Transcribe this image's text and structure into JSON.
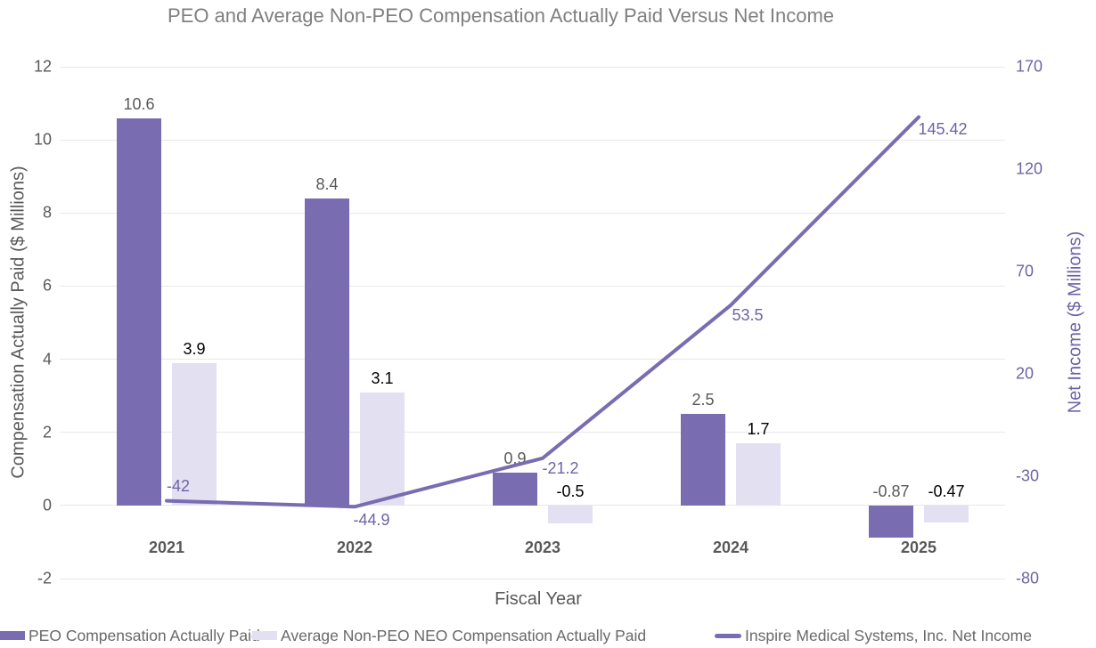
{
  "chart_data": {
    "type": "combo-bar-line",
    "title": "PEO and Average Non-PEO Compensation Actually Paid Versus Net Income",
    "xlabel": "Fiscal Year",
    "ylabel_left": "Compensation Actually Paid ($ Millions)",
    "ylabel_right": "Net Income ($ Millions)",
    "categories": [
      "2021",
      "2022",
      "2023",
      "2024",
      "2025"
    ],
    "left_axis": {
      "ticks": [
        12,
        10,
        8,
        6,
        4,
        2,
        0,
        -2
      ],
      "ylim": [
        -2,
        12
      ]
    },
    "right_axis": {
      "ticks": [
        170,
        120,
        70,
        20,
        -30,
        -80
      ],
      "ylim": [
        -80,
        170
      ]
    },
    "grid": "horizontal",
    "legend_position": "bottom",
    "series": [
      {
        "name": "PEO Compensation Actually Paid",
        "type": "bar",
        "axis": "left",
        "color": "#7A6CB0",
        "label_color": "#595959",
        "values": [
          10.6,
          8.4,
          0.9,
          2.5,
          -0.87
        ],
        "labels": [
          "10.6",
          "8.4",
          "0.9",
          "2.5",
          "-0.87"
        ]
      },
      {
        "name": "Average Non-PEO NEO Compensation Actually Paid",
        "type": "bar",
        "axis": "left",
        "color": "#E3E0F1",
        "label_color": "#000000",
        "values": [
          3.9,
          3.1,
          -0.5,
          1.7,
          -0.47
        ],
        "labels": [
          "3.9",
          "3.1",
          "-0.5",
          "1.7",
          "-0.47"
        ]
      },
      {
        "name": "Inspire Medical Systems, Inc. Net Income",
        "type": "line",
        "axis": "right",
        "color": "#7A6CB0",
        "label_color": "#6E64A5",
        "values": [
          -42,
          -44.9,
          -21.2,
          53.5,
          145.42
        ],
        "labels": [
          "-42",
          "-44.9",
          "-21.2",
          "53.5",
          "145.42"
        ]
      }
    ],
    "colors": {
      "title_text": "#7F7F7F",
      "tick_text": "#595959",
      "right_axis_text": "#6E64A5",
      "gridline": "#E8E8E8",
      "legend_text": "#696969",
      "background": "#FFFFFF"
    }
  }
}
